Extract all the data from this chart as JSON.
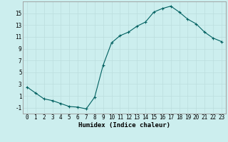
{
  "x": [
    0,
    1,
    2,
    3,
    4,
    5,
    6,
    7,
    8,
    9,
    10,
    11,
    12,
    13,
    14,
    15,
    16,
    17,
    18,
    19,
    20,
    21,
    22,
    23
  ],
  "y": [
    2.5,
    1.5,
    0.5,
    0.2,
    -0.3,
    -0.8,
    -0.9,
    -1.2,
    0.8,
    6.2,
    10.0,
    11.2,
    11.8,
    12.8,
    13.5,
    15.2,
    15.8,
    16.2,
    15.2,
    14.0,
    13.2,
    11.8,
    10.8,
    10.2
  ],
  "line_color": "#006060",
  "marker": "+",
  "markersize": 3.0,
  "bg_color": "#cceeee",
  "grid_major_color": "#bbdddd",
  "grid_minor_color": "#ccdddd",
  "xlabel": "Humidex (Indice chaleur)",
  "ylim": [
    -2,
    17
  ],
  "xlim": [
    -0.5,
    23.5
  ],
  "yticks": [
    -1,
    1,
    3,
    5,
    7,
    9,
    11,
    13,
    15
  ],
  "xticks": [
    0,
    1,
    2,
    3,
    4,
    5,
    6,
    7,
    8,
    9,
    10,
    11,
    12,
    13,
    14,
    15,
    16,
    17,
    18,
    19,
    20,
    21,
    22,
    23
  ],
  "xlabel_fontsize": 6.5,
  "tick_fontsize": 5.5,
  "linewidth": 0.8,
  "markerwidth": 0.8
}
